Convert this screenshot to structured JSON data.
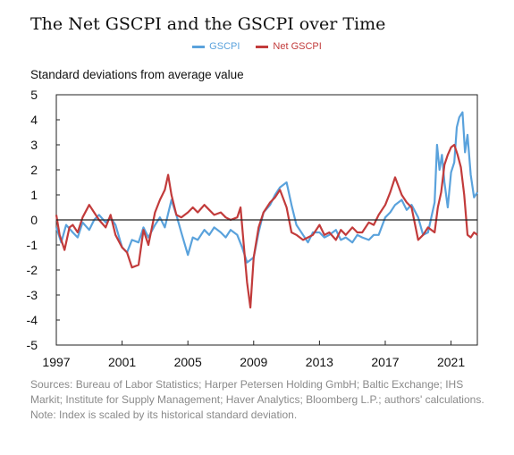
{
  "title": "The Net GSCPI and the GSCPI over Time",
  "ylabel_text": "Standard deviations from average value",
  "sources": "Sources: Bureau of Labor Statistics; Harper Petersen Holding GmbH; Baltic Exchange; IHS Markit; Institute for Supply Management; Haver Analytics; Bloomberg L.P.; authors' calculations.",
  "note": "Note: Index is scaled by its historical standard deviation.",
  "chart_data": {
    "type": "line",
    "title": "The Net GSCPI and the GSCPI over Time",
    "xlabel": "",
    "ylabel": "Standard deviations from average value",
    "xlim": [
      1997.0,
      2022.6
    ],
    "ylim": [
      -5,
      5
    ],
    "xticks": [
      1997,
      2001,
      2005,
      2009,
      2013,
      2017,
      2021
    ],
    "yticks": [
      -5,
      -4,
      -3,
      -2,
      -1,
      0,
      1,
      2,
      3,
      4,
      5
    ],
    "legend_position": "top-center",
    "series": [
      {
        "name": "GSCPI",
        "color": "#5aa2dc",
        "x": [
          1997.0,
          1997.3,
          1997.6,
          1998.0,
          1998.3,
          1998.6,
          1999.0,
          1999.3,
          1999.6,
          2000.0,
          2000.3,
          2000.6,
          2001.0,
          2001.3,
          2001.6,
          2002.0,
          2002.3,
          2002.6,
          2003.0,
          2003.3,
          2003.6,
          2004.0,
          2004.3,
          2004.6,
          2005.0,
          2005.3,
          2005.6,
          2006.0,
          2006.3,
          2006.6,
          2007.0,
          2007.3,
          2007.6,
          2008.0,
          2008.3,
          2008.6,
          2009.0,
          2009.3,
          2009.6,
          2010.0,
          2010.3,
          2010.6,
          2011.0,
          2011.3,
          2011.6,
          2012.0,
          2012.3,
          2012.6,
          2013.0,
          2013.3,
          2013.6,
          2014.0,
          2014.3,
          2014.6,
          2015.0,
          2015.3,
          2015.6,
          2016.0,
          2016.3,
          2016.6,
          2017.0,
          2017.3,
          2017.6,
          2018.0,
          2018.3,
          2018.6,
          2019.0,
          2019.3,
          2019.6,
          2020.0,
          2020.15,
          2020.3,
          2020.45,
          2020.6,
          2020.8,
          2021.0,
          2021.2,
          2021.35,
          2021.5,
          2021.7,
          2021.85,
          2022.0,
          2022.2,
          2022.4,
          2022.6
        ],
        "values": [
          -0.3,
          -0.9,
          -0.2,
          -0.5,
          -0.7,
          -0.1,
          -0.4,
          0.0,
          0.2,
          -0.1,
          0.1,
          -0.2,
          -1.1,
          -1.3,
          -0.8,
          -0.9,
          -0.3,
          -0.7,
          -0.2,
          0.1,
          -0.3,
          0.8,
          0.2,
          -0.5,
          -1.4,
          -0.7,
          -0.8,
          -0.4,
          -0.6,
          -0.3,
          -0.5,
          -0.7,
          -0.4,
          -0.6,
          -1.1,
          -1.7,
          -1.5,
          -0.5,
          0.3,
          0.6,
          1.0,
          1.3,
          1.5,
          0.6,
          -0.2,
          -0.6,
          -0.9,
          -0.5,
          -0.5,
          -0.7,
          -0.6,
          -0.4,
          -0.8,
          -0.7,
          -0.9,
          -0.6,
          -0.7,
          -0.8,
          -0.6,
          -0.6,
          0.1,
          0.3,
          0.6,
          0.8,
          0.4,
          0.6,
          0.1,
          -0.6,
          -0.5,
          0.7,
          3.0,
          2.0,
          2.6,
          1.5,
          0.5,
          1.9,
          2.3,
          3.7,
          4.1,
          4.3,
          2.7,
          3.4,
          1.8,
          0.9,
          1.1
        ]
      },
      {
        "name": "Net GSCPI",
        "color": "#c23b3b",
        "x": [
          1997.0,
          1997.2,
          1997.5,
          1997.8,
          1998.0,
          1998.3,
          1998.6,
          1999.0,
          1999.3,
          1999.6,
          2000.0,
          2000.3,
          2000.6,
          2001.0,
          2001.3,
          2001.6,
          2002.0,
          2002.3,
          2002.6,
          2003.0,
          2003.3,
          2003.6,
          2003.8,
          2004.0,
          2004.3,
          2004.6,
          2005.0,
          2005.3,
          2005.6,
          2006.0,
          2006.3,
          2006.6,
          2007.0,
          2007.3,
          2007.6,
          2008.0,
          2008.2,
          2008.4,
          2008.6,
          2008.8,
          2009.0,
          2009.3,
          2009.6,
          2010.0,
          2010.3,
          2010.6,
          2011.0,
          2011.3,
          2011.6,
          2012.0,
          2012.3,
          2012.6,
          2013.0,
          2013.3,
          2013.6,
          2014.0,
          2014.3,
          2014.6,
          2015.0,
          2015.3,
          2015.6,
          2016.0,
          2016.3,
          2016.6,
          2017.0,
          2017.3,
          2017.6,
          2018.0,
          2018.3,
          2018.6,
          2019.0,
          2019.3,
          2019.6,
          2020.0,
          2020.2,
          2020.4,
          2020.6,
          2020.8,
          2021.0,
          2021.2,
          2021.4,
          2021.6,
          2021.8,
          2022.0,
          2022.2,
          2022.4,
          2022.6
        ],
        "values": [
          0.2,
          -0.6,
          -1.2,
          -0.3,
          -0.2,
          -0.5,
          0.1,
          0.6,
          0.3,
          0.0,
          -0.3,
          0.2,
          -0.6,
          -1.1,
          -1.3,
          -1.9,
          -1.8,
          -0.4,
          -1.0,
          0.3,
          0.8,
          1.2,
          1.8,
          1.0,
          0.2,
          0.1,
          0.3,
          0.5,
          0.3,
          0.6,
          0.4,
          0.2,
          0.3,
          0.1,
          0.0,
          0.1,
          0.5,
          -1.0,
          -2.5,
          -3.5,
          -1.5,
          -0.3,
          0.3,
          0.7,
          0.9,
          1.2,
          0.5,
          -0.5,
          -0.6,
          -0.8,
          -0.7,
          -0.6,
          -0.2,
          -0.6,
          -0.5,
          -0.8,
          -0.4,
          -0.6,
          -0.3,
          -0.5,
          -0.5,
          -0.1,
          -0.2,
          0.2,
          0.6,
          1.1,
          1.7,
          1.0,
          0.7,
          0.5,
          -0.8,
          -0.6,
          -0.3,
          -0.5,
          0.5,
          1.1,
          2.2,
          2.6,
          2.9,
          3.0,
          2.6,
          2.1,
          1.0,
          -0.6,
          -0.7,
          -0.5,
          -0.6
        ]
      }
    ]
  }
}
